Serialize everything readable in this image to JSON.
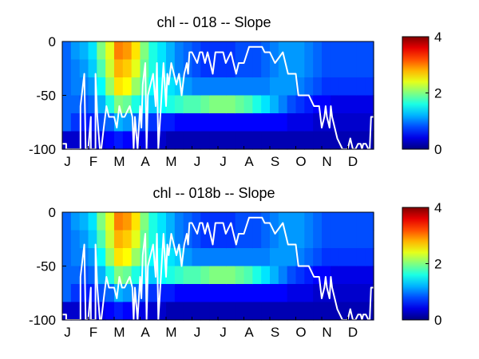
{
  "chart_data": [
    {
      "type": "heatmap",
      "title": "chl -- 018 -- Slope",
      "x_tick_labels": [
        "J",
        "F",
        "M",
        "A",
        "M",
        "J",
        "J",
        "A",
        "S",
        "O",
        "N",
        "D"
      ],
      "y_ticks": [
        0,
        -50,
        -100
      ],
      "ylim": [
        -100,
        0
      ],
      "colorbar": {
        "range": [
          0,
          4
        ],
        "ticks": [
          0,
          2,
          4
        ]
      },
      "columns": [
        [
          0.9,
          0.9,
          0.9,
          0.9,
          0.9,
          0.3
        ],
        [
          1.1,
          1.0,
          1.0,
          0.9,
          0.7,
          0.3
        ],
        [
          1.2,
          1.1,
          1.0,
          0.8,
          0.6,
          0.3
        ],
        [
          1.4,
          1.3,
          1.1,
          0.9,
          0.6,
          0.3
        ],
        [
          2.0,
          1.8,
          1.5,
          1.2,
          0.8,
          0.4
        ],
        [
          2.4,
          2.3,
          2.1,
          1.6,
          0.9,
          0.5
        ],
        [
          3.0,
          2.8,
          2.6,
          2.0,
          1.2,
          0.6
        ],
        [
          2.9,
          2.7,
          2.5,
          1.9,
          1.1,
          0.5
        ],
        [
          2.6,
          2.4,
          2.1,
          1.6,
          0.9,
          0.4
        ],
        [
          2.0,
          1.9,
          1.8,
          1.4,
          0.8,
          0.4
        ],
        [
          1.6,
          1.6,
          1.5,
          1.3,
          0.7,
          0.3
        ],
        [
          1.4,
          1.4,
          1.5,
          1.5,
          0.6,
          0.3
        ],
        [
          1.2,
          1.2,
          1.4,
          1.6,
          0.6,
          0.2
        ],
        [
          1.0,
          1.0,
          1.3,
          1.7,
          0.5,
          0.2
        ],
        [
          0.9,
          0.9,
          1.1,
          1.8,
          0.5,
          0.2
        ],
        [
          0.8,
          0.8,
          1.0,
          1.8,
          0.5,
          0.2
        ],
        [
          0.7,
          0.7,
          1.0,
          1.9,
          0.5,
          0.2
        ],
        [
          0.7,
          0.7,
          1.0,
          2.0,
          0.5,
          0.2
        ],
        [
          0.7,
          0.7,
          1.0,
          2.0,
          0.5,
          0.2
        ],
        [
          0.7,
          0.7,
          1.0,
          2.0,
          0.5,
          0.2
        ],
        [
          0.8,
          0.8,
          1.0,
          1.9,
          0.5,
          0.2
        ],
        [
          0.8,
          0.8,
          1.0,
          1.8,
          0.5,
          0.2
        ],
        [
          0.8,
          0.8,
          1.0,
          1.6,
          0.5,
          0.2
        ],
        [
          0.9,
          0.9,
          1.0,
          1.4,
          0.5,
          0.2
        ],
        [
          1.0,
          1.0,
          1.1,
          1.2,
          0.5,
          0.2
        ],
        [
          1.1,
          1.1,
          1.1,
          1.0,
          0.5,
          0.2
        ],
        [
          1.1,
          1.1,
          1.1,
          0.8,
          0.4,
          0.2
        ],
        [
          1.1,
          1.1,
          1.0,
          0.7,
          0.4,
          0.2
        ],
        [
          1.0,
          1.0,
          0.9,
          0.6,
          0.4,
          0.2
        ],
        [
          0.9,
          0.9,
          0.8,
          0.5,
          0.3,
          0.2
        ],
        [
          0.8,
          0.8,
          0.7,
          0.5,
          0.3,
          0.2
        ],
        [
          0.8,
          0.8,
          0.7,
          0.4,
          0.3,
          0.2
        ],
        [
          0.8,
          0.8,
          0.7,
          0.4,
          0.3,
          0.2
        ],
        [
          0.8,
          0.8,
          0.7,
          0.4,
          0.3,
          0.2
        ],
        [
          0.8,
          0.8,
          0.7,
          0.4,
          0.3,
          0.2
        ],
        [
          0.8,
          0.8,
          0.7,
          0.4,
          0.3,
          0.2
        ]
      ],
      "line": {
        "color": "#ffffff",
        "x": [
          0,
          0.15,
          0.15,
          0.7,
          0.7,
          0.85,
          0.9,
          1.0,
          1.1,
          1.1,
          1.28,
          1.28,
          1.35,
          1.45,
          1.5,
          1.6,
          1.7,
          1.8,
          2.0,
          2.1,
          2.15,
          2.2,
          2.3,
          2.4,
          2.6,
          2.7,
          2.75,
          2.8,
          2.9,
          3.0,
          3.05,
          3.1,
          3.2,
          3.25,
          3.3,
          3.5,
          3.6,
          3.65,
          3.7,
          3.9,
          4.0,
          4.05,
          4.1,
          4.2,
          4.3,
          4.4,
          4.5,
          4.55,
          4.6,
          4.7,
          4.8,
          4.85,
          4.9,
          5.0,
          5.2,
          5.3,
          5.4,
          5.5,
          5.6,
          5.7,
          5.8,
          5.9,
          6.0,
          6.2,
          6.3,
          6.5,
          6.6,
          6.7,
          6.8,
          7.0,
          7.2,
          7.3,
          7.5,
          7.7,
          7.8,
          8.0,
          8.2,
          8.5,
          8.7,
          9.0,
          9.1,
          9.2,
          9.3,
          9.5,
          9.7,
          9.9,
          10.0,
          10.1,
          10.15,
          10.2,
          10.3,
          10.35,
          10.4,
          10.6,
          10.8,
          11.0,
          11.1,
          11.15,
          11.2,
          11.3,
          11.4,
          11.5,
          11.55,
          11.6,
          11.7,
          11.8,
          11.85,
          11.9,
          12.0
        ],
        "y": [
          -95,
          -95,
          -100,
          -100,
          -60,
          -30,
          -100,
          -100,
          -70,
          -100,
          -100,
          -30,
          -70,
          -100,
          -100,
          -80,
          -60,
          -70,
          -70,
          -80,
          -70,
          -60,
          -70,
          -70,
          -60,
          -70,
          -100,
          -70,
          -100,
          -60,
          -80,
          -40,
          -20,
          -100,
          -50,
          -30,
          -60,
          -20,
          -100,
          -20,
          -60,
          -30,
          -40,
          -20,
          -30,
          -40,
          -30,
          -40,
          -50,
          -30,
          -20,
          -30,
          -10,
          -10,
          -20,
          -10,
          -10,
          -20,
          -10,
          -20,
          -30,
          -10,
          -10,
          -10,
          -20,
          -10,
          -20,
          -30,
          -20,
          -20,
          -5,
          -5,
          -5,
          -5,
          -10,
          -10,
          -20,
          -10,
          -30,
          -30,
          -50,
          -50,
          -50,
          -50,
          -60,
          -60,
          -80,
          -70,
          -60,
          -70,
          -80,
          -60,
          -70,
          -90,
          -100,
          -100,
          -90,
          -95,
          -100,
          -100,
          -95,
          -95,
          -100,
          -95,
          -95,
          -100,
          -100,
          -70,
          -70
        ]
      }
    },
    {
      "type": "heatmap",
      "title": "chl -- 018b -- Slope",
      "x_tick_labels": [
        "J",
        "F",
        "M",
        "A",
        "M",
        "J",
        "J",
        "A",
        "S",
        "O",
        "N",
        "D"
      ],
      "y_ticks": [
        0,
        -50,
        -100
      ],
      "ylim": [
        -100,
        0
      ],
      "colorbar": {
        "range": [
          0,
          4
        ],
        "ticks": [
          0,
          2,
          4
        ]
      },
      "columns": [
        [
          0.9,
          0.9,
          0.9,
          0.9,
          0.9,
          0.3
        ],
        [
          1.1,
          1.0,
          1.0,
          0.9,
          0.7,
          0.3
        ],
        [
          1.2,
          1.1,
          1.0,
          0.8,
          0.6,
          0.3
        ],
        [
          1.4,
          1.3,
          1.1,
          0.9,
          0.6,
          0.3
        ],
        [
          2.0,
          1.8,
          1.5,
          1.2,
          0.8,
          0.4
        ],
        [
          2.4,
          2.3,
          2.1,
          1.6,
          0.9,
          0.5
        ],
        [
          3.0,
          2.8,
          2.6,
          2.0,
          1.2,
          0.6
        ],
        [
          2.9,
          2.7,
          2.5,
          1.9,
          1.1,
          0.5
        ],
        [
          2.6,
          2.4,
          2.1,
          1.6,
          0.9,
          0.4
        ],
        [
          2.0,
          1.9,
          1.8,
          1.4,
          0.8,
          0.4
        ],
        [
          1.6,
          1.6,
          1.5,
          1.3,
          0.7,
          0.3
        ],
        [
          1.4,
          1.4,
          1.5,
          1.5,
          0.6,
          0.3
        ],
        [
          1.2,
          1.2,
          1.4,
          1.6,
          0.6,
          0.2
        ],
        [
          1.0,
          1.0,
          1.3,
          1.7,
          0.5,
          0.2
        ],
        [
          0.9,
          0.9,
          1.1,
          1.8,
          0.5,
          0.2
        ],
        [
          0.8,
          0.8,
          1.0,
          1.8,
          0.5,
          0.2
        ],
        [
          0.7,
          0.7,
          1.0,
          1.9,
          0.5,
          0.2
        ],
        [
          0.7,
          0.7,
          1.0,
          2.0,
          0.5,
          0.2
        ],
        [
          0.7,
          0.7,
          1.0,
          2.0,
          0.5,
          0.2
        ],
        [
          0.7,
          0.7,
          1.0,
          2.0,
          0.5,
          0.2
        ],
        [
          0.8,
          0.8,
          1.0,
          1.9,
          0.5,
          0.2
        ],
        [
          0.8,
          0.8,
          1.0,
          1.8,
          0.5,
          0.2
        ],
        [
          0.8,
          0.8,
          1.0,
          1.6,
          0.5,
          0.2
        ],
        [
          0.9,
          0.9,
          1.0,
          1.4,
          0.5,
          0.2
        ],
        [
          1.0,
          1.0,
          1.1,
          1.2,
          0.5,
          0.2
        ],
        [
          1.1,
          1.1,
          1.1,
          1.0,
          0.5,
          0.2
        ],
        [
          1.1,
          1.1,
          1.1,
          0.8,
          0.4,
          0.2
        ],
        [
          1.1,
          1.1,
          1.0,
          0.7,
          0.4,
          0.2
        ],
        [
          1.0,
          1.0,
          0.9,
          0.6,
          0.4,
          0.2
        ],
        [
          0.9,
          0.9,
          0.8,
          0.5,
          0.3,
          0.2
        ],
        [
          0.8,
          0.8,
          0.7,
          0.5,
          0.3,
          0.2
        ],
        [
          0.8,
          0.8,
          0.7,
          0.4,
          0.3,
          0.2
        ],
        [
          0.8,
          0.8,
          0.7,
          0.4,
          0.3,
          0.2
        ],
        [
          0.8,
          0.8,
          0.7,
          0.4,
          0.3,
          0.2
        ],
        [
          0.8,
          0.8,
          0.7,
          0.4,
          0.3,
          0.2
        ],
        [
          0.8,
          0.8,
          0.7,
          0.4,
          0.3,
          0.2
        ]
      ],
      "line": {
        "color": "#ffffff",
        "x": [
          0,
          0.15,
          0.15,
          0.7,
          0.7,
          0.85,
          0.9,
          1.0,
          1.1,
          1.1,
          1.28,
          1.28,
          1.35,
          1.45,
          1.5,
          1.6,
          1.7,
          1.8,
          2.0,
          2.1,
          2.15,
          2.2,
          2.3,
          2.4,
          2.6,
          2.7,
          2.75,
          2.8,
          2.9,
          3.0,
          3.05,
          3.1,
          3.2,
          3.25,
          3.3,
          3.5,
          3.6,
          3.65,
          3.7,
          3.9,
          4.0,
          4.05,
          4.1,
          4.2,
          4.3,
          4.4,
          4.5,
          4.55,
          4.6,
          4.7,
          4.8,
          4.85,
          4.9,
          5.0,
          5.2,
          5.3,
          5.4,
          5.5,
          5.6,
          5.7,
          5.8,
          5.9,
          6.0,
          6.2,
          6.3,
          6.5,
          6.6,
          6.7,
          6.8,
          7.0,
          7.2,
          7.3,
          7.5,
          7.7,
          7.8,
          8.0,
          8.2,
          8.5,
          8.7,
          9.0,
          9.1,
          9.2,
          9.3,
          9.5,
          9.7,
          9.9,
          10.0,
          10.1,
          10.15,
          10.2,
          10.3,
          10.35,
          10.4,
          10.6,
          10.8,
          11.0,
          11.1,
          11.15,
          11.2,
          11.3,
          11.4,
          11.5,
          11.55,
          11.6,
          11.7,
          11.8,
          11.85,
          11.9,
          12.0
        ],
        "y": [
          -95,
          -95,
          -100,
          -100,
          -60,
          -30,
          -100,
          -100,
          -70,
          -100,
          -100,
          -30,
          -70,
          -100,
          -100,
          -80,
          -60,
          -70,
          -70,
          -80,
          -70,
          -60,
          -70,
          -70,
          -60,
          -70,
          -100,
          -70,
          -100,
          -60,
          -80,
          -40,
          -20,
          -100,
          -50,
          -30,
          -60,
          -20,
          -100,
          -20,
          -60,
          -30,
          -40,
          -20,
          -30,
          -40,
          -30,
          -40,
          -50,
          -30,
          -20,
          -30,
          -10,
          -10,
          -20,
          -10,
          -10,
          -20,
          -10,
          -20,
          -30,
          -10,
          -10,
          -10,
          -20,
          -10,
          -20,
          -30,
          -20,
          -20,
          -5,
          -5,
          -5,
          -5,
          -10,
          -10,
          -20,
          -10,
          -30,
          -30,
          -50,
          -50,
          -50,
          -50,
          -60,
          -60,
          -80,
          -70,
          -60,
          -70,
          -80,
          -60,
          -70,
          -90,
          -100,
          -100,
          -90,
          -95,
          -100,
          -100,
          -95,
          -95,
          -100,
          -95,
          -95,
          -100,
          -100,
          -70,
          -70
        ]
      }
    }
  ]
}
